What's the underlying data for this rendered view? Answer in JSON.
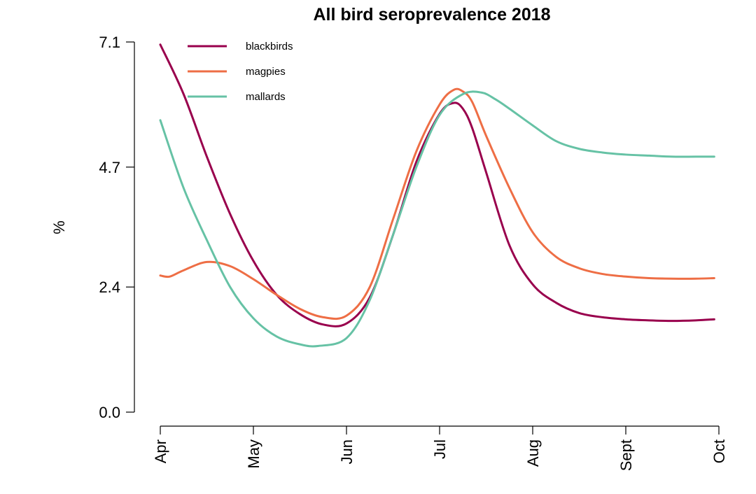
{
  "chart_data": {
    "type": "line",
    "title": "All bird seroprevalence 2018",
    "xlabel": "",
    "ylabel": "%",
    "x_ticks": [
      "Apr",
      "May",
      "Jun",
      "Jul",
      "Aug",
      "Sept",
      "Oct"
    ],
    "y_ticks": [
      "0.0",
      "2.4",
      "4.7",
      "7.1"
    ],
    "ylim": [
      0,
      7.1
    ],
    "xlim": [
      0,
      6
    ],
    "x_unit": "months since Apr",
    "legend_position": "top-left",
    "series": [
      {
        "name": "blackbirds",
        "color": "#99004d",
        "x": [
          0,
          0.25,
          0.5,
          0.75,
          1.0,
          1.25,
          1.5,
          1.75,
          2.0,
          2.25,
          2.5,
          2.75,
          3.0,
          3.15,
          3.25,
          3.35,
          3.5,
          3.75,
          4.0,
          4.25,
          4.5,
          4.75,
          5.0,
          5.25,
          5.5,
          5.75,
          5.95
        ],
        "y": [
          7.05,
          6.1,
          4.9,
          3.8,
          2.9,
          2.25,
          1.88,
          1.68,
          1.7,
          2.2,
          3.4,
          4.8,
          5.72,
          5.93,
          5.82,
          5.45,
          4.6,
          3.2,
          2.45,
          2.1,
          1.9,
          1.82,
          1.78,
          1.76,
          1.75,
          1.76,
          1.78
        ]
      },
      {
        "name": "magpies",
        "color": "#ee6e45",
        "x": [
          0,
          0.1,
          0.25,
          0.5,
          0.75,
          1.0,
          1.25,
          1.5,
          1.75,
          2.0,
          2.25,
          2.5,
          2.75,
          3.0,
          3.15,
          3.25,
          3.35,
          3.5,
          3.75,
          4.0,
          4.25,
          4.5,
          4.75,
          5.0,
          5.25,
          5.5,
          5.75,
          5.95
        ],
        "y": [
          2.62,
          2.6,
          2.72,
          2.88,
          2.8,
          2.55,
          2.25,
          1.98,
          1.82,
          1.85,
          2.4,
          3.7,
          5.0,
          5.9,
          6.18,
          6.15,
          5.95,
          5.3,
          4.3,
          3.45,
          2.98,
          2.76,
          2.65,
          2.6,
          2.57,
          2.56,
          2.56,
          2.57
        ]
      },
      {
        "name": "mallards",
        "color": "#66c2a5",
        "x": [
          0,
          0.25,
          0.5,
          0.75,
          1.0,
          1.25,
          1.5,
          1.7,
          2.0,
          2.25,
          2.5,
          2.75,
          3.0,
          3.25,
          3.45,
          3.6,
          3.75,
          4.0,
          4.25,
          4.5,
          4.75,
          5.0,
          5.25,
          5.5,
          5.75,
          5.95
        ],
        "y": [
          5.6,
          4.3,
          3.3,
          2.4,
          1.8,
          1.45,
          1.3,
          1.27,
          1.42,
          2.15,
          3.4,
          4.7,
          5.7,
          6.1,
          6.13,
          6.0,
          5.82,
          5.5,
          5.2,
          5.05,
          4.98,
          4.94,
          4.92,
          4.9,
          4.9,
          4.9
        ]
      }
    ]
  }
}
